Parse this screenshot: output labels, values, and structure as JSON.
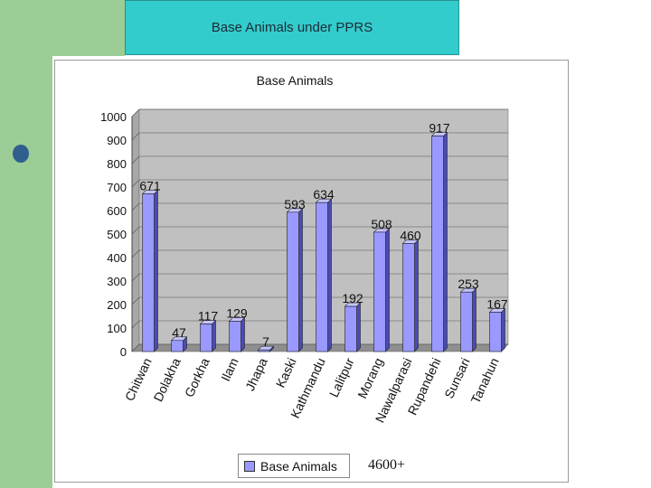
{
  "slide": {
    "title": "Base Animals under PPRS",
    "total_note": "4600+"
  },
  "chart_data": {
    "type": "bar",
    "title": "Base Animals",
    "categories": [
      "Chitwan",
      "Dolakha",
      "Gorkha",
      "Ilam",
      "Jhapa",
      "Kaski",
      "Kathmandu",
      "Lalitpur",
      "Morang",
      "Nawalparasi",
      "Rupandehi",
      "Sunsari",
      "Tanahun"
    ],
    "series": [
      {
        "name": "Base Animals",
        "values": [
          671,
          47,
          117,
          129,
          7,
          593,
          634,
          192,
          508,
          460,
          917,
          253,
          167
        ],
        "color": "#9999ff"
      }
    ],
    "ylim": [
      0,
      1000
    ],
    "yticks": [
      0,
      100,
      200,
      300,
      400,
      500,
      600,
      700,
      800,
      900,
      1000
    ],
    "grid": true,
    "legend_position": "bottom",
    "plot_background": "#c0c0c0"
  }
}
